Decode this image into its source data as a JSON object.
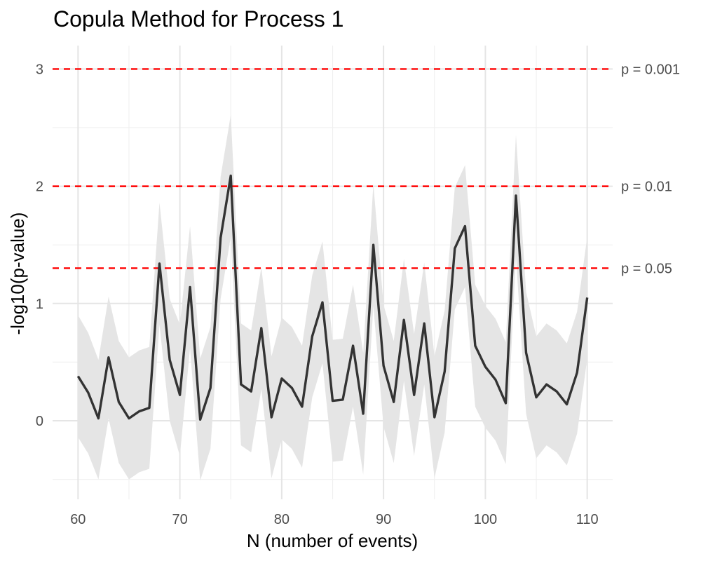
{
  "chart_data": {
    "type": "line",
    "title": "Copula Method for Process 1",
    "xlabel": "N (number of events)",
    "ylabel": "-log10(p-value)",
    "xlim": [
      57.5,
      112.5
    ],
    "ylim": [
      -0.67,
      3.2
    ],
    "x_ticks": [
      60,
      70,
      80,
      90,
      100,
      110
    ],
    "y_ticks": [
      0,
      1,
      2,
      3
    ],
    "x_minor_ticks": [
      65,
      75,
      85,
      95,
      105
    ],
    "y_minor_ticks": [
      -0.5,
      0.5,
      1.5,
      2.5
    ],
    "grid": true,
    "colors": {
      "line": "#333333",
      "band": "#e5e5e5",
      "reference": "#ff0000",
      "grid_major": "#e5e5e5",
      "grid_minor": "#f0f0f0"
    },
    "reference_lines": [
      {
        "y": 3.0,
        "label": "p = 0.001"
      },
      {
        "y": 2.0,
        "label": "p = 0.01"
      },
      {
        "y": 1.301,
        "label": "p = 0.05"
      }
    ],
    "series": [
      {
        "x": [
          60,
          61,
          62,
          63,
          64,
          65,
          66,
          67,
          68,
          69,
          70,
          71,
          72,
          73,
          74,
          75,
          76,
          77,
          78,
          79,
          80,
          81,
          82,
          83,
          84,
          85,
          86,
          87,
          88,
          89,
          90,
          91,
          92,
          93,
          94,
          95,
          96,
          97,
          98,
          99,
          100,
          101,
          102,
          103,
          104,
          105,
          106,
          107,
          108,
          109,
          110
        ],
        "values": [
          0.38,
          0.24,
          0.02,
          0.54,
          0.16,
          0.02,
          0.08,
          0.11,
          1.34,
          0.52,
          0.22,
          1.14,
          0.01,
          0.28,
          1.56,
          2.09,
          0.31,
          0.25,
          0.79,
          0.03,
          0.36,
          0.28,
          0.12,
          0.72,
          1.01,
          0.17,
          0.18,
          0.64,
          0.06,
          1.5,
          0.47,
          0.16,
          0.86,
          0.22,
          0.83,
          0.03,
          0.42,
          1.47,
          1.66,
          0.64,
          0.46,
          0.35,
          0.15,
          1.92,
          0.58,
          0.2,
          0.31,
          0.25,
          0.14,
          0.41,
          1.05
        ],
        "upper": [
          0.9,
          0.75,
          0.52,
          1.06,
          0.68,
          0.54,
          0.6,
          0.63,
          1.86,
          1.04,
          0.82,
          1.66,
          0.53,
          0.8,
          2.08,
          2.61,
          0.83,
          0.77,
          1.31,
          0.55,
          0.88,
          0.8,
          0.64,
          1.24,
          1.53,
          0.69,
          0.7,
          1.16,
          0.58,
          2.02,
          0.99,
          0.68,
          1.38,
          0.74,
          1.35,
          0.55,
          0.94,
          1.99,
          2.18,
          1.16,
          0.98,
          0.87,
          0.67,
          2.44,
          1.1,
          0.72,
          0.83,
          0.77,
          0.66,
          0.93,
          1.57
        ],
        "lower": [
          -0.14,
          -0.28,
          -0.5,
          0.02,
          -0.36,
          -0.5,
          -0.44,
          -0.41,
          0.82,
          0.0,
          -0.3,
          0.62,
          -0.51,
          -0.24,
          1.04,
          1.57,
          -0.21,
          -0.27,
          0.27,
          -0.49,
          -0.16,
          -0.24,
          -0.4,
          0.2,
          0.49,
          -0.35,
          -0.34,
          0.12,
          -0.46,
          0.98,
          -0.05,
          -0.36,
          0.34,
          -0.3,
          0.31,
          -0.49,
          -0.1,
          0.95,
          1.14,
          0.12,
          -0.06,
          -0.17,
          -0.37,
          1.4,
          0.06,
          -0.32,
          -0.21,
          -0.27,
          -0.38,
          -0.11,
          0.53
        ]
      }
    ]
  }
}
